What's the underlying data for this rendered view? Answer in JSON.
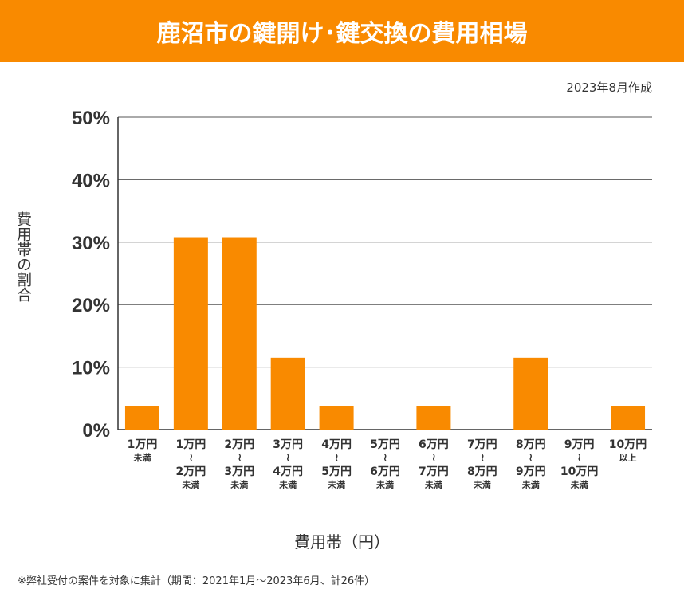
{
  "title": "鹿沼市の鍵開け･鍵交換の費用相場",
  "date_note": "2023年8月作成",
  "footnote": "※弊社受付の案件を対象に集計（期間：2021年1月～2023年6月、計26件）",
  "chart_data": {
    "type": "bar",
    "ylabel": "費用帯の割合",
    "xlabel": "費用帯（円）",
    "ylim": [
      0,
      50
    ],
    "yticks": [
      "0%",
      "10%",
      "20%",
      "30%",
      "40%",
      "50%"
    ],
    "grid": true,
    "bar_color": "#f98a00",
    "categories": [
      [
        "1万円",
        "未満"
      ],
      [
        "1万円",
        "〜",
        "2万円",
        "未満"
      ],
      [
        "2万円",
        "〜",
        "3万円",
        "未満"
      ],
      [
        "3万円",
        "〜",
        "4万円",
        "未満"
      ],
      [
        "4万円",
        "〜",
        "5万円",
        "未満"
      ],
      [
        "5万円",
        "〜",
        "6万円",
        "未満"
      ],
      [
        "6万円",
        "〜",
        "7万円",
        "未満"
      ],
      [
        "7万円",
        "〜",
        "8万円",
        "未満"
      ],
      [
        "8万円",
        "〜",
        "9万円",
        "未満"
      ],
      [
        "9万円",
        "〜",
        "10万円",
        "未満"
      ],
      [
        "10万円",
        "以上"
      ]
    ],
    "values": [
      3.8,
      30.8,
      30.8,
      11.5,
      3.8,
      0,
      3.8,
      0,
      11.5,
      0,
      3.8
    ]
  }
}
